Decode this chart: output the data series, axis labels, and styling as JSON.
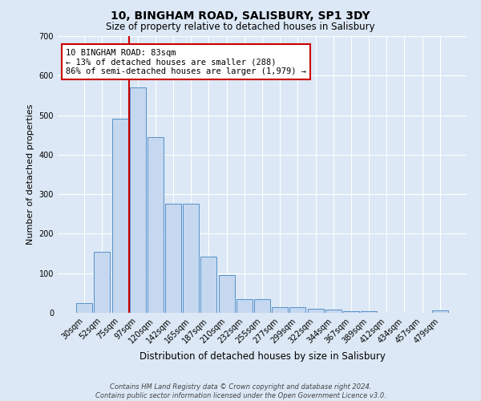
{
  "title1": "10, BINGHAM ROAD, SALISBURY, SP1 3DY",
  "title2": "Size of property relative to detached houses in Salisbury",
  "xlabel": "Distribution of detached houses by size in Salisbury",
  "ylabel": "Number of detached properties",
  "categories": [
    "30sqm",
    "52sqm",
    "75sqm",
    "97sqm",
    "120sqm",
    "142sqm",
    "165sqm",
    "187sqm",
    "210sqm",
    "232sqm",
    "255sqm",
    "277sqm",
    "299sqm",
    "322sqm",
    "344sqm",
    "367sqm",
    "389sqm",
    "412sqm",
    "434sqm",
    "457sqm",
    "479sqm"
  ],
  "values": [
    25,
    155,
    492,
    570,
    445,
    275,
    275,
    142,
    95,
    35,
    35,
    14,
    14,
    11,
    8,
    5,
    5,
    0,
    0,
    0,
    7
  ],
  "bar_color": "#c5d8f0",
  "bar_edge_color": "#5590c8",
  "bg_color": "#dce8f5",
  "grid_color": "#ffffff",
  "vline_color": "#cc0000",
  "annotation_text": "10 BINGHAM ROAD: 83sqm\n← 13% of detached houses are smaller (288)\n86% of semi-detached houses are larger (1,979) →",
  "annotation_box_color": "#ffffff",
  "annotation_box_edge": "#cc0000",
  "footer": "Contains HM Land Registry data © Crown copyright and database right 2024.\nContains public sector information licensed under the Open Government Licence v3.0.",
  "ylim": [
    0,
    700
  ],
  "yticks": [
    0,
    100,
    200,
    300,
    400,
    500,
    600,
    700
  ],
  "title1_fontsize": 10,
  "title2_fontsize": 8.5,
  "xlabel_fontsize": 8.5,
  "ylabel_fontsize": 8,
  "tick_fontsize": 7,
  "footer_fontsize": 6,
  "annot_fontsize": 7.5
}
